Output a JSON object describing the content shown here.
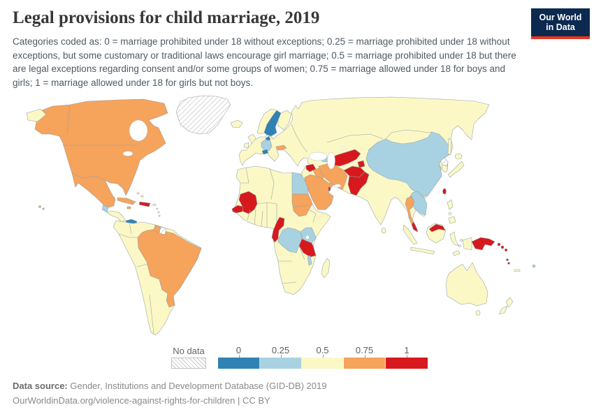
{
  "header": {
    "title": "Legal provisions for child marriage, 2019",
    "subtitle": "Categories coded as: 0 = marriage prohibited under 18 without exceptions; 0.25 = marriage prohibited under 18 without exceptions, but some customary or traditional laws encourage girl marriage; 0.5 = marriage prohibited under 18 but there are legal exceptions regarding consent and/or some groups of women; 0.75 = marriage allowed under 18 for boys and girls; 1 = marriage allowed under 18 for girls but not boys.",
    "logo_line1": "Our World",
    "logo_line2": "in Data",
    "logo_bg": "#0c2950",
    "logo_accent": "#e8351f"
  },
  "legend": {
    "no_data_label": "No data",
    "bins": [
      {
        "label": "0",
        "value": 0
      },
      {
        "label": "0.25",
        "value": 0.25
      },
      {
        "label": "0.5",
        "value": 0.5
      },
      {
        "label": "0.75",
        "value": 0.75
      },
      {
        "label": "1",
        "value": 1
      }
    ]
  },
  "footer": {
    "source_label": "Data source:",
    "source_text": "Gender, Institutions and Development Database (GID-DB) 2019",
    "url_line": "OurWorldinData.org/violence-against-rights-for-children | CC BY"
  },
  "chart_data": {
    "type": "choropleth",
    "title": "Legal provisions for child marriage, 2019",
    "year": 2019,
    "bin_labels": [
      "0",
      "0.25",
      "0.5",
      "0.75",
      "1"
    ],
    "bin_colors": {
      "0": "#3082b5",
      "0.25": "#a8d2e2",
      "0.5": "#fbf8c5",
      "0.75": "#f6a35c",
      "1": "#d7191d"
    },
    "no_data": [
      "Greenland",
      "Suriname",
      "North Korea"
    ],
    "countries": {
      "Canada": 0.75,
      "United States": 0.75,
      "Mexico": 0.75,
      "Guatemala": 0.25,
      "Belize": 0.5,
      "Honduras": 0.5,
      "Nicaragua": 0.5,
      "Costa Rica": 0.5,
      "Panama": 0,
      "Cuba": 0.75,
      "Jamaica": 0.75,
      "Haiti": 1,
      "Dominican Republic": 1,
      "Puerto Rico": 0.5,
      "Bahamas": 0.5,
      "Colombia": 0.5,
      "Venezuela": 0.5,
      "Guyana": 0.75,
      "Ecuador": 0.5,
      "Peru": 0.5,
      "Bolivia": 0.5,
      "Paraguay": 0.5,
      "Chile": 0.5,
      "Argentina": 0.5,
      "Uruguay": 0.75,
      "Brazil": 0.75,
      "Iceland": 0.5,
      "United Kingdom": 0.5,
      "Ireland": 0.5,
      "Norway": 0.5,
      "Sweden": 0,
      "Finland": 0.5,
      "Denmark": 0,
      "Germany": 0.25,
      "Switzerland": 0,
      "Slovakia": 0.75,
      "France": 0.5,
      "Spain": 0.5,
      "Portugal": 0.5,
      "Italy": 0.5,
      "Poland": 0.5,
      "Ukraine": 0.5,
      "Romania": 0.5,
      "Greece": 0.5,
      "Russia": 0.5,
      "Turkey": 0.5,
      "Syria": 1,
      "Iraq": 0.75,
      "Jordan": 0.5,
      "Saudi Arabia": 0.75,
      "Yemen": 0.75,
      "Oman": 0.75,
      "United Arab Emirates": 0.75,
      "Qatar": 1,
      "Kuwait": 0.75,
      "Iran": 0.75,
      "Azerbaijan": 0.25,
      "Kazakhstan": 0.5,
      "Turkmenistan": 1,
      "Uzbekistan": 1,
      "Tajikistan": 1,
      "Kyrgyzstan": 0.5,
      "Afghanistan": 1,
      "Pakistan": 1,
      "India": 0.5,
      "Nepal": 0.5,
      "Bangladesh": 0.5,
      "Sri Lanka": 0.5,
      "China": 0.25,
      "Mongolia": 0.5,
      "South Korea": 0.5,
      "Japan": 0.5,
      "Taiwan": 1,
      "Myanmar": 0.5,
      "Thailand": 0.75,
      "Laos": 0.25,
      "Vietnam": 0.25,
      "Cambodia": 0.25,
      "Malaysia": 1,
      "Indonesia": 0.5,
      "Philippines": 0.5,
      "Papua New Guinea": 1,
      "Solomon Islands": 1,
      "Vanuatu": 1,
      "Fiji": 0.25,
      "New Caledonia": 0.5,
      "Australia": 0.5,
      "New Zealand": 0.5,
      "Morocco": 0.5,
      "Algeria": 0.5,
      "Tunisia": 0.5,
      "Libya": 0.5,
      "Egypt": 0.25,
      "Western Sahara": 0.5,
      "Mauritania": 0.5,
      "Senegal": 1,
      "Mali": 1,
      "Guinea": 0.5,
      "Burkina Faso": 0.5,
      "Ghana": 0.5,
      "Niger": 0.5,
      "Nigeria": 0.5,
      "Chad": 0.5,
      "Cameroon": 1,
      "Gabon": 1,
      "Central African Republic": 0.5,
      "Republic of Congo": 0.5,
      "Democratic Republic of Congo": 0.25,
      "Sudan": 0.75,
      "South Sudan": 0.75,
      "Ethiopia": 0.5,
      "Somalia": 0.5,
      "Uganda": 0.25,
      "Kenya": 0.25,
      "Tanzania": 1,
      "Malawi": 0.25,
      "Zambia": 0.5,
      "Mozambique": 0.5,
      "Zimbabwe": 0.5,
      "Botswana": 0.5,
      "Namibia": 0.5,
      "Angola": 0.5,
      "South Africa": 0.5,
      "Madagascar": 0.5
    }
  }
}
